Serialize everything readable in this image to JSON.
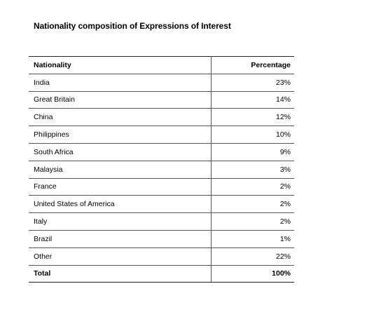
{
  "document": {
    "title": "Nationality composition of Expressions of Interest"
  },
  "table": {
    "headers": {
      "nationality": "Nationality",
      "percentage": "Percentage"
    },
    "rows": [
      {
        "nationality": "India",
        "percentage": "23%"
      },
      {
        "nationality": "Great Britain",
        "percentage": "14%"
      },
      {
        "nationality": "China",
        "percentage": "12%"
      },
      {
        "nationality": "Philippines",
        "percentage": "10%"
      },
      {
        "nationality": "South Africa",
        "percentage": "9%"
      },
      {
        "nationality": "Malaysia",
        "percentage": "3%"
      },
      {
        "nationality": "France",
        "percentage": "2%"
      },
      {
        "nationality": "United States of America",
        "percentage": "2%"
      },
      {
        "nationality": "Italy",
        "percentage": "2%"
      },
      {
        "nationality": "Brazil",
        "percentage": "1%"
      },
      {
        "nationality": "Other",
        "percentage": "22%"
      }
    ],
    "total": {
      "nationality": "Total",
      "percentage": "100%"
    }
  }
}
